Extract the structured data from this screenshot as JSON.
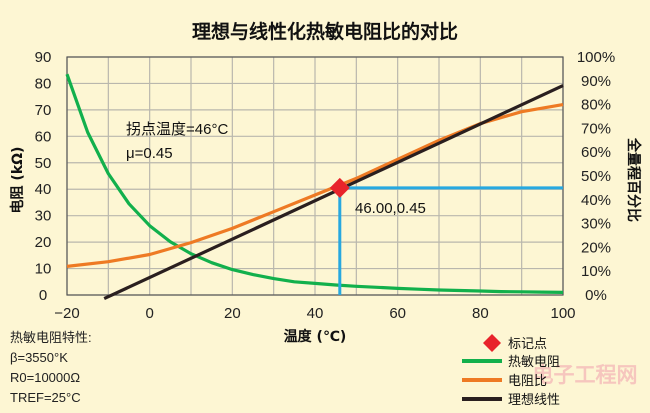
{
  "colors": {
    "background": "#fdf6d3",
    "grid": "#b9b7ad",
    "thermistor": "#12b04c",
    "ratio": "#ee7a24",
    "ideal": "#2a1f1f",
    "marker": "#e8232b",
    "guide": "#27a8e0",
    "watermark": "#f4b7b7"
  },
  "chart_data": {
    "type": "line",
    "title": "理想与线性化热敏电阻比的对比",
    "xlabel": "温度 (℃)",
    "ylabel_left": "电阻 (kΩ)",
    "ylabel_right": "全量程百分比",
    "xlim": [
      -20,
      100
    ],
    "ylim_left": [
      0,
      90
    ],
    "ylim_right": [
      0,
      100
    ],
    "xticks": [
      "−20",
      "0",
      "20",
      "40",
      "60",
      "80",
      "100"
    ],
    "yticks_left": [
      "0",
      "10",
      "20",
      "30",
      "40",
      "50",
      "60",
      "70",
      "80",
      "90"
    ],
    "yticks_right": [
      "0%",
      "10%",
      "20%",
      "30%",
      "40%",
      "50%",
      "60%",
      "70%",
      "80%",
      "90%",
      "100%"
    ],
    "grid": true,
    "legend_position": "bottom-right",
    "series": [
      {
        "name": "热敏电阻",
        "axis": "left",
        "color": "#12b04c",
        "x": [
          -20,
          -15,
          -10,
          -5,
          0,
          5,
          10,
          15,
          20,
          25,
          30,
          35,
          40,
          45,
          50,
          55,
          60,
          65,
          70,
          75,
          80,
          85,
          90,
          95,
          100
        ],
        "y": [
          83.5,
          61.5,
          45.9,
          34.5,
          26.2,
          20.1,
          15.6,
          12.2,
          9.6,
          7.7,
          6.2,
          5.0,
          4.4,
          3.8,
          3.3,
          2.9,
          2.5,
          2.2,
          1.9,
          1.7,
          1.5,
          1.3,
          1.2,
          1.1,
          1.0
        ]
      },
      {
        "name": "电阻比",
        "axis": "right",
        "color": "#ee7a24",
        "x": [
          -20,
          -10,
          0,
          10,
          20,
          30,
          40,
          50,
          60,
          70,
          80,
          90,
          100
        ],
        "y": [
          12,
          14,
          17,
          22,
          28,
          35,
          42,
          49,
          57,
          65,
          72,
          77,
          80
        ]
      },
      {
        "name": "理想线性",
        "axis": "right",
        "color": "#2a1f1f",
        "x": [
          -11,
          100
        ],
        "y": [
          -1.5,
          88
        ]
      }
    ],
    "marker": {
      "name": "标记点",
      "x": 46,
      "y_right": 45,
      "label": "46.00,0.45"
    },
    "annotation": {
      "line1": "拐点温度=46°C",
      "line2": "μ=0.45"
    },
    "specs": {
      "heading": "热敏电阻特性:",
      "beta": "β=3550°K",
      "r0": "R0=10000Ω",
      "tref": "TREF=25°C"
    }
  },
  "watermark": "电子工程网"
}
